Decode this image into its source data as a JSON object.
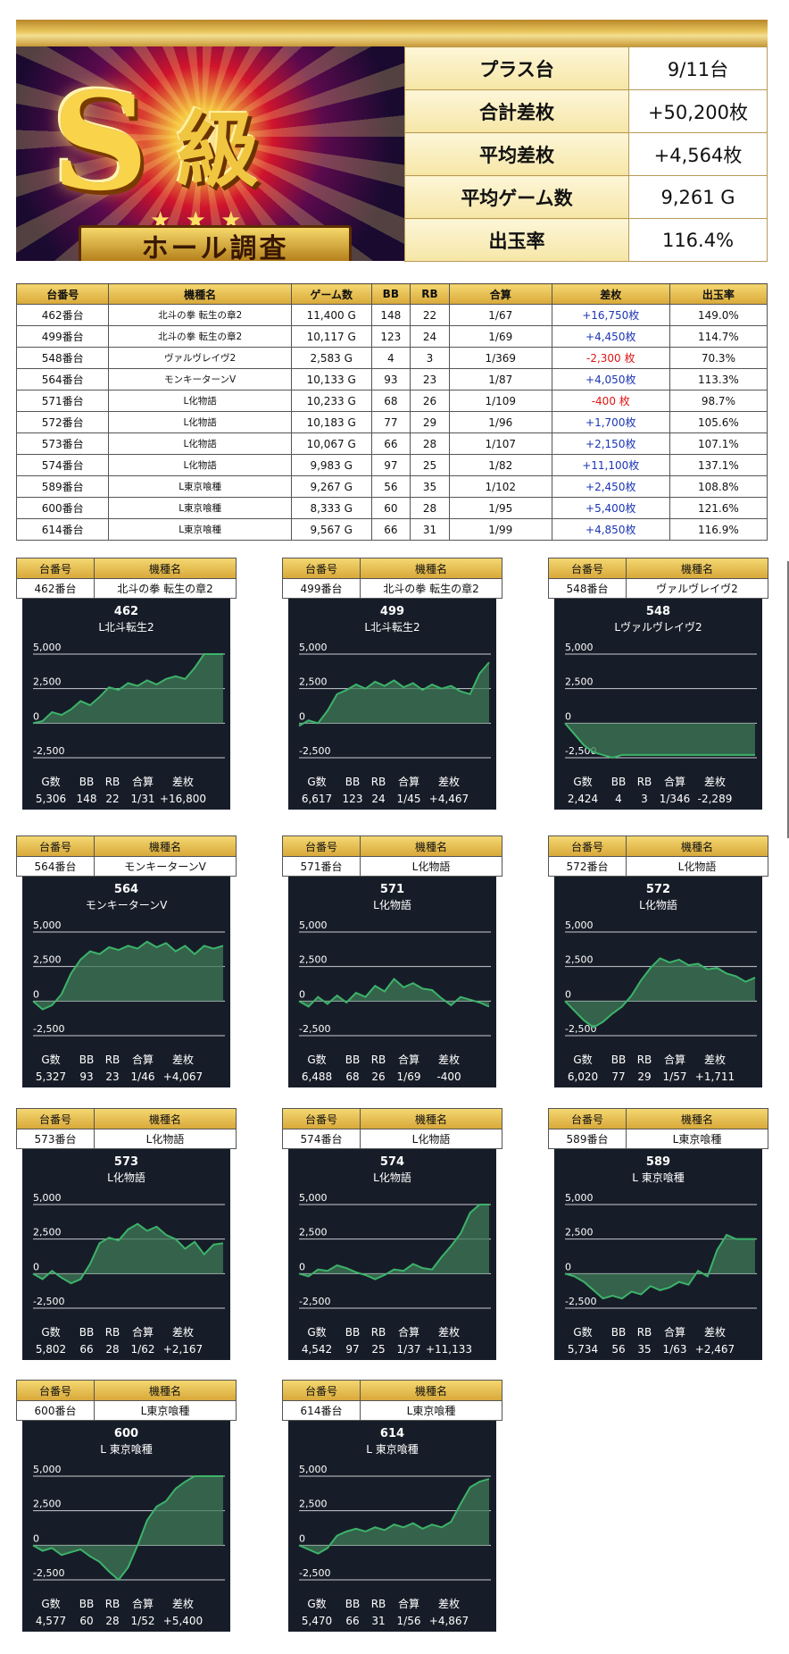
{
  "banner": {
    "big": "S",
    "kyu": "級",
    "stars": "★ ★ ★",
    "ribbon": "ホール調査"
  },
  "summary": [
    {
      "label": "プラス台",
      "value": "9/11台"
    },
    {
      "label": "合計差枚",
      "value": "+50,200枚"
    },
    {
      "label": "平均差枚",
      "value": "+4,564枚"
    },
    {
      "label": "平均ゲーム数",
      "value": "9,261 G"
    },
    {
      "label": "出玉率",
      "value": "116.4%"
    }
  ],
  "table": {
    "headers": [
      "台番号",
      "機種名",
      "ゲーム数",
      "BB",
      "RB",
      "合算",
      "差枚",
      "出玉率"
    ],
    "rows": [
      {
        "no": "462番台",
        "model": "北斗の拳 転生の章2",
        "games": "11,400 G",
        "bb": "148",
        "rb": "22",
        "total": "1/67",
        "diff": "+16,750枚",
        "rate": "149.0%",
        "sign": "pos"
      },
      {
        "no": "499番台",
        "model": "北斗の拳 転生の章2",
        "games": "10,117 G",
        "bb": "123",
        "rb": "24",
        "total": "1/69",
        "diff": "+4,450枚",
        "rate": "114.7%",
        "sign": "pos"
      },
      {
        "no": "548番台",
        "model": "ヴァルヴレイヴ2",
        "games": "2,583 G",
        "bb": "4",
        "rb": "3",
        "total": "1/369",
        "diff": "-2,300 枚",
        "rate": "70.3%",
        "sign": "neg"
      },
      {
        "no": "564番台",
        "model": "モンキーターンV",
        "games": "10,133 G",
        "bb": "93",
        "rb": "23",
        "total": "1/87",
        "diff": "+4,050枚",
        "rate": "113.3%",
        "sign": "pos"
      },
      {
        "no": "571番台",
        "model": "L化物語",
        "games": "10,233 G",
        "bb": "68",
        "rb": "26",
        "total": "1/109",
        "diff": "-400 枚",
        "rate": "98.7%",
        "sign": "neg"
      },
      {
        "no": "572番台",
        "model": "L化物語",
        "games": "10,183 G",
        "bb": "77",
        "rb": "29",
        "total": "1/96",
        "diff": "+1,700枚",
        "rate": "105.6%",
        "sign": "pos"
      },
      {
        "no": "573番台",
        "model": "L化物語",
        "games": "10,067 G",
        "bb": "66",
        "rb": "28",
        "total": "1/107",
        "diff": "+2,150枚",
        "rate": "107.1%",
        "sign": "pos"
      },
      {
        "no": "574番台",
        "model": "L化物語",
        "games": "9,983 G",
        "bb": "97",
        "rb": "25",
        "total": "1/82",
        "diff": "+11,100枚",
        "rate": "137.1%",
        "sign": "pos"
      },
      {
        "no": "589番台",
        "model": "L東京喰種",
        "games": "9,267 G",
        "bb": "56",
        "rb": "35",
        "total": "1/102",
        "diff": "+2,450枚",
        "rate": "108.8%",
        "sign": "pos"
      },
      {
        "no": "600番台",
        "model": "L東京喰種",
        "games": "8,333 G",
        "bb": "60",
        "rb": "28",
        "total": "1/95",
        "diff": "+5,400枚",
        "rate": "121.6%",
        "sign": "pos"
      },
      {
        "no": "614番台",
        "model": "L東京喰種",
        "games": "9,567 G",
        "bb": "66",
        "rb": "31",
        "total": "1/99",
        "diff": "+4,850枚",
        "rate": "116.9%",
        "sign": "pos"
      }
    ]
  },
  "panel_labels": {
    "no": "台番号",
    "model": "機種名"
  },
  "stat_labels": [
    "G数",
    "BB",
    "RB",
    "合算",
    "差枚"
  ],
  "colors": {
    "gold": "#e2b84b",
    "dark": "#171d28",
    "line": "#3cb36a",
    "fill": "#3f7a57",
    "pos": "#1b35b5",
    "neg": "#e01414"
  },
  "chart_data": [
    {
      "type": "area",
      "id": "462",
      "machine": "北斗の拳 転生の章2",
      "no": "462番台",
      "title": "462",
      "subtitle": "L北斗転生2",
      "ylim": [
        -2500,
        5000
      ],
      "ticks": [
        5000,
        2500,
        0,
        -2500
      ],
      "x": [
        0,
        5,
        10,
        15,
        20,
        25,
        30,
        35,
        40,
        45,
        50,
        55,
        60,
        65,
        70,
        75,
        80,
        85,
        90,
        95,
        100
      ],
      "values": [
        0,
        150,
        800,
        600,
        1000,
        1600,
        1300,
        1900,
        2600,
        2400,
        2900,
        2700,
        3100,
        2800,
        3200,
        3400,
        3200,
        4000,
        5000,
        5000,
        5000
      ],
      "stats": [
        "5,306",
        "148",
        "22",
        "1/31",
        "+16,800"
      ]
    },
    {
      "type": "area",
      "id": "499",
      "machine": "北斗の拳 転生の章2",
      "no": "499番台",
      "title": "499",
      "subtitle": "L北斗転生2",
      "ylim": [
        -2500,
        5000
      ],
      "ticks": [
        5000,
        2500,
        0,
        -2500
      ],
      "x": [
        0,
        5,
        10,
        15,
        20,
        25,
        30,
        35,
        40,
        45,
        50,
        55,
        60,
        65,
        70,
        75,
        80,
        85,
        90,
        95,
        100
      ],
      "values": [
        -200,
        200,
        0,
        900,
        2100,
        2400,
        2800,
        2500,
        3000,
        2700,
        3100,
        2600,
        2900,
        2400,
        2800,
        2500,
        2700,
        2300,
        2100,
        3600,
        4400
      ],
      "stats": [
        "6,617",
        "123",
        "24",
        "1/45",
        "+4,467"
      ]
    },
    {
      "type": "area",
      "id": "548",
      "machine": "ヴァルヴレイヴ2",
      "no": "548番台",
      "title": "548",
      "subtitle": "Lヴァルヴレイヴ2",
      "ylim": [
        -2500,
        5000
      ],
      "ticks": [
        5000,
        2500,
        0,
        -2500
      ],
      "x": [
        0,
        5,
        10,
        15,
        20,
        25,
        30,
        100
      ],
      "values": [
        0,
        -800,
        -1600,
        -2100,
        -2300,
        -2500,
        -2300,
        -2300
      ],
      "stats": [
        "2,424",
        "4",
        "3",
        "1/346",
        "-2,289"
      ]
    },
    {
      "type": "area",
      "id": "564",
      "machine": "モンキーターンV",
      "no": "564番台",
      "title": "564",
      "subtitle": "モンキーターンV",
      "ylim": [
        -2500,
        5000
      ],
      "ticks": [
        5000,
        2500,
        0,
        -2500
      ],
      "x": [
        0,
        5,
        10,
        15,
        20,
        25,
        30,
        35,
        40,
        45,
        50,
        55,
        60,
        65,
        70,
        75,
        80,
        85,
        90,
        95,
        100
      ],
      "values": [
        0,
        -600,
        -300,
        500,
        2000,
        3000,
        3600,
        3400,
        3900,
        3700,
        4000,
        3800,
        4300,
        3900,
        4200,
        3600,
        4000,
        3400,
        4000,
        3800,
        4000
      ],
      "stats": [
        "5,327",
        "93",
        "23",
        "1/46",
        "+4,067"
      ]
    },
    {
      "type": "area",
      "id": "571",
      "machine": "L化物語",
      "no": "571番台",
      "title": "571",
      "subtitle": "L化物語",
      "ylim": [
        -2500,
        5000
      ],
      "ticks": [
        5000,
        2500,
        0,
        -2500
      ],
      "x": [
        0,
        5,
        10,
        15,
        20,
        25,
        30,
        35,
        40,
        45,
        50,
        55,
        60,
        65,
        70,
        75,
        80,
        85,
        90,
        95,
        100
      ],
      "values": [
        0,
        -400,
        300,
        -200,
        400,
        -100,
        600,
        300,
        1100,
        700,
        1600,
        1000,
        1300,
        900,
        800,
        200,
        -300,
        300,
        100,
        -100,
        -400
      ],
      "stats": [
        "6,488",
        "68",
        "26",
        "1/69",
        "-400"
      ]
    },
    {
      "type": "area",
      "id": "572",
      "machine": "L化物語",
      "no": "572番台",
      "title": "572",
      "subtitle": "L化物語",
      "ylim": [
        -2500,
        5000
      ],
      "ticks": [
        5000,
        2500,
        0,
        -2500
      ],
      "x": [
        0,
        5,
        10,
        15,
        20,
        25,
        30,
        35,
        40,
        45,
        50,
        55,
        60,
        65,
        70,
        75,
        80,
        85,
        90,
        95,
        100
      ],
      "values": [
        0,
        -700,
        -1400,
        -1900,
        -1500,
        -900,
        -400,
        400,
        1500,
        2400,
        3100,
        2800,
        3000,
        2600,
        2700,
        2300,
        2400,
        2000,
        1800,
        1400,
        1700
      ],
      "stats": [
        "6,020",
        "77",
        "29",
        "1/57",
        "+1,711"
      ]
    },
    {
      "type": "area",
      "id": "573",
      "machine": "L化物語",
      "no": "573番台",
      "title": "573",
      "subtitle": "L化物語",
      "ylim": [
        -2500,
        5000
      ],
      "ticks": [
        5000,
        2500,
        0,
        -2500
      ],
      "x": [
        0,
        5,
        10,
        15,
        20,
        25,
        30,
        35,
        40,
        45,
        50,
        55,
        60,
        65,
        70,
        75,
        80,
        85,
        90,
        95,
        100
      ],
      "values": [
        0,
        -400,
        200,
        -300,
        -700,
        -400,
        700,
        2200,
        2600,
        2400,
        3200,
        3600,
        3100,
        3400,
        2800,
        2500,
        1800,
        2300,
        1400,
        2100,
        2200
      ],
      "stats": [
        "5,802",
        "66",
        "28",
        "1/62",
        "+2,167"
      ]
    },
    {
      "type": "area",
      "id": "574",
      "machine": "L化物語",
      "no": "574番台",
      "title": "574",
      "subtitle": "L化物語",
      "ylim": [
        -2500,
        5000
      ],
      "ticks": [
        5000,
        2500,
        0,
        -2500
      ],
      "x": [
        0,
        5,
        10,
        15,
        20,
        25,
        30,
        35,
        40,
        45,
        50,
        55,
        60,
        65,
        70,
        75,
        80,
        85,
        90,
        95,
        100
      ],
      "values": [
        0,
        -200,
        300,
        200,
        600,
        400,
        100,
        -100,
        -400,
        -100,
        300,
        200,
        700,
        400,
        300,
        1200,
        2000,
        2900,
        4400,
        5000,
        5000
      ],
      "stats": [
        "4,542",
        "97",
        "25",
        "1/37",
        "+11,133"
      ]
    },
    {
      "type": "area",
      "id": "589",
      "machine": "L東京喰種",
      "no": "589番台",
      "title": "589",
      "subtitle": "L 東京喰種",
      "ylim": [
        -2500,
        5000
      ],
      "ticks": [
        5000,
        2500,
        0,
        -2500
      ],
      "x": [
        0,
        5,
        10,
        15,
        20,
        25,
        30,
        35,
        40,
        45,
        50,
        55,
        60,
        65,
        70,
        75,
        80,
        85,
        90,
        95,
        100
      ],
      "values": [
        0,
        -200,
        -600,
        -1200,
        -1800,
        -1600,
        -1800,
        -1300,
        -1500,
        -900,
        -1200,
        -1000,
        -600,
        -800,
        200,
        -200,
        1700,
        2800,
        2500,
        2500,
        2500
      ],
      "stats": [
        "5,734",
        "56",
        "35",
        "1/63",
        "+2,467"
      ]
    },
    {
      "type": "area",
      "id": "600",
      "machine": "L東京喰種",
      "no": "600番台",
      "title": "600",
      "subtitle": "L 東京喰種",
      "ylim": [
        -2500,
        5000
      ],
      "ticks": [
        5000,
        2500,
        0,
        -2500
      ],
      "x": [
        0,
        5,
        10,
        15,
        20,
        25,
        30,
        35,
        40,
        45,
        50,
        55,
        60,
        65,
        70,
        75,
        80,
        85,
        90,
        95,
        100
      ],
      "values": [
        0,
        -400,
        -200,
        -700,
        -500,
        -300,
        -800,
        -1200,
        -1900,
        -2500,
        -1600,
        0,
        1800,
        2800,
        3200,
        4100,
        4600,
        5000,
        5000,
        5000,
        5000
      ],
      "stats": [
        "4,577",
        "60",
        "28",
        "1/52",
        "+5,400"
      ]
    },
    {
      "type": "area",
      "id": "614",
      "machine": "L東京喰種",
      "no": "614番台",
      "title": "614",
      "subtitle": "L 東京喰種",
      "ylim": [
        -2500,
        5000
      ],
      "ticks": [
        5000,
        2500,
        0,
        -2500
      ],
      "x": [
        0,
        5,
        10,
        15,
        20,
        25,
        30,
        35,
        40,
        45,
        50,
        55,
        60,
        65,
        70,
        75,
        80,
        85,
        90,
        95,
        100
      ],
      "values": [
        0,
        -300,
        -600,
        -200,
        700,
        1000,
        1200,
        1000,
        1300,
        1100,
        1500,
        1300,
        1600,
        1200,
        1500,
        1300,
        1700,
        3000,
        4200,
        4600,
        4800
      ],
      "stats": [
        "5,470",
        "66",
        "31",
        "1/56",
        "+4,867"
      ]
    }
  ]
}
